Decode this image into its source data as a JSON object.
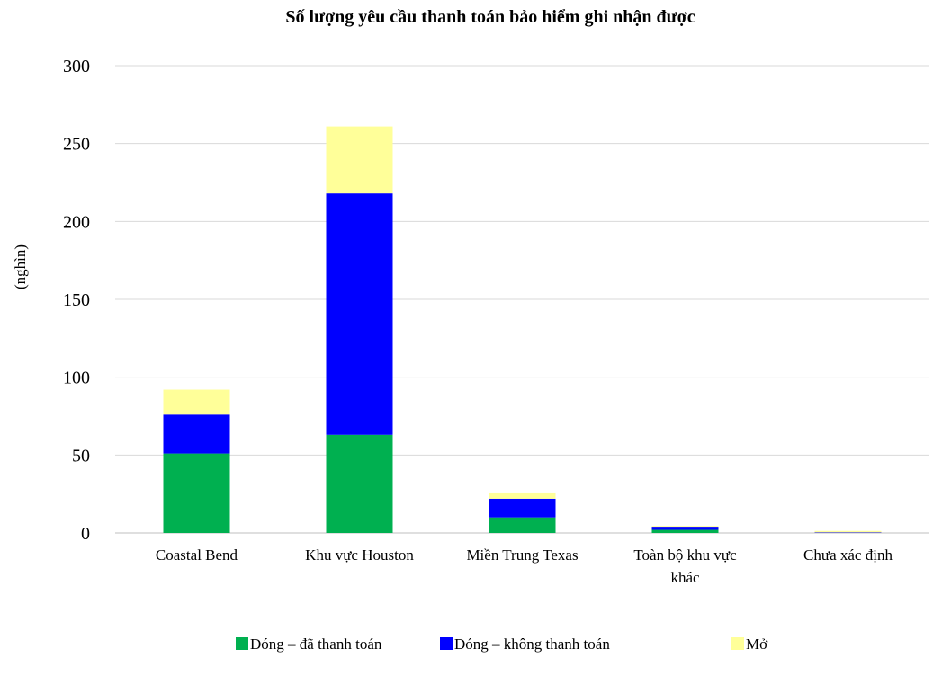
{
  "chart_data": {
    "type": "bar",
    "stacked": true,
    "title": "Số lượng yêu cầu thanh toán bảo hiểm ghi nhận được",
    "ylabel": "(nghìn)",
    "xlabel": "",
    "ylim": [
      0,
      300
    ],
    "yticks": [
      "0",
      "50",
      "100",
      "150",
      "200",
      "250",
      "300"
    ],
    "categories": [
      "Coastal Bend",
      "Khu vực Houston",
      "Miền Trung Texas",
      "Toàn bộ khu vực khác",
      "Chưa xác định"
    ],
    "series": [
      {
        "name": "Đóng – đã thanh toán",
        "color": "#00b050",
        "values": [
          51,
          63,
          10,
          2,
          0
        ]
      },
      {
        "name": "Đóng – không thanh toán",
        "color": "#0000ff",
        "values": [
          25,
          155,
          12,
          2,
          0.3
        ]
      },
      {
        "name": "Mở",
        "color": "#ffff99",
        "values": [
          16,
          43,
          4,
          0.5,
          1
        ]
      }
    ],
    "grid": true,
    "legend_position": "bottom"
  }
}
